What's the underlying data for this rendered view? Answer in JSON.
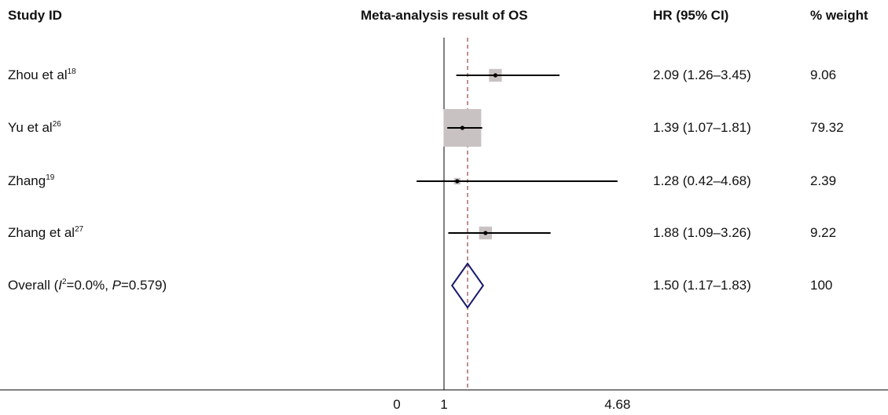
{
  "headers": {
    "study": "Study ID",
    "plot": "Meta-analysis result of OS",
    "hr": "HR (95% CI)",
    "weight": "% weight"
  },
  "chart_data": {
    "type": "forest",
    "xticks": [
      "0",
      "1",
      "4.68"
    ],
    "reference_line": 1,
    "overall_line": 1.5,
    "studies": [
      {
        "name": "Zhou et al",
        "ref": "18",
        "hr": 2.09,
        "lo": 1.26,
        "hi": 3.45,
        "hr_text": "2.09 (1.26–3.45)",
        "weight": 9.06,
        "weight_text": "9.06"
      },
      {
        "name": "Yu et al",
        "ref": "26",
        "hr": 1.39,
        "lo": 1.07,
        "hi": 1.81,
        "hr_text": "1.39 (1.07–1.81)",
        "weight": 79.32,
        "weight_text": "79.32"
      },
      {
        "name": "Zhang",
        "ref": "19",
        "hr": 1.28,
        "lo": 0.42,
        "hi": 4.68,
        "hr_text": "1.28 (0.42–4.68)",
        "weight": 2.39,
        "weight_text": "2.39"
      },
      {
        "name": "Zhang et al",
        "ref": "27",
        "hr": 1.88,
        "lo": 1.09,
        "hi": 3.26,
        "hr_text": "1.88 (1.09–3.26)",
        "weight": 9.22,
        "weight_text": "9.22"
      }
    ],
    "overall": {
      "label_pre": "Overall (",
      "i_symbol": "I",
      "i_sup": "2",
      "i_value": "=0.0%, ",
      "p_symbol": "P",
      "p_value": "=0.579)",
      "hr": 1.5,
      "lo": 1.17,
      "hi": 1.83,
      "hr_text": "1.50 (1.17–1.83)",
      "weight_text": "100"
    }
  },
  "colors": {
    "box": "#c9c2c2",
    "ci_line": "#000000",
    "reference_line": "#000000",
    "overall_line": "#a05050",
    "diamond": "#1a1a6e"
  }
}
